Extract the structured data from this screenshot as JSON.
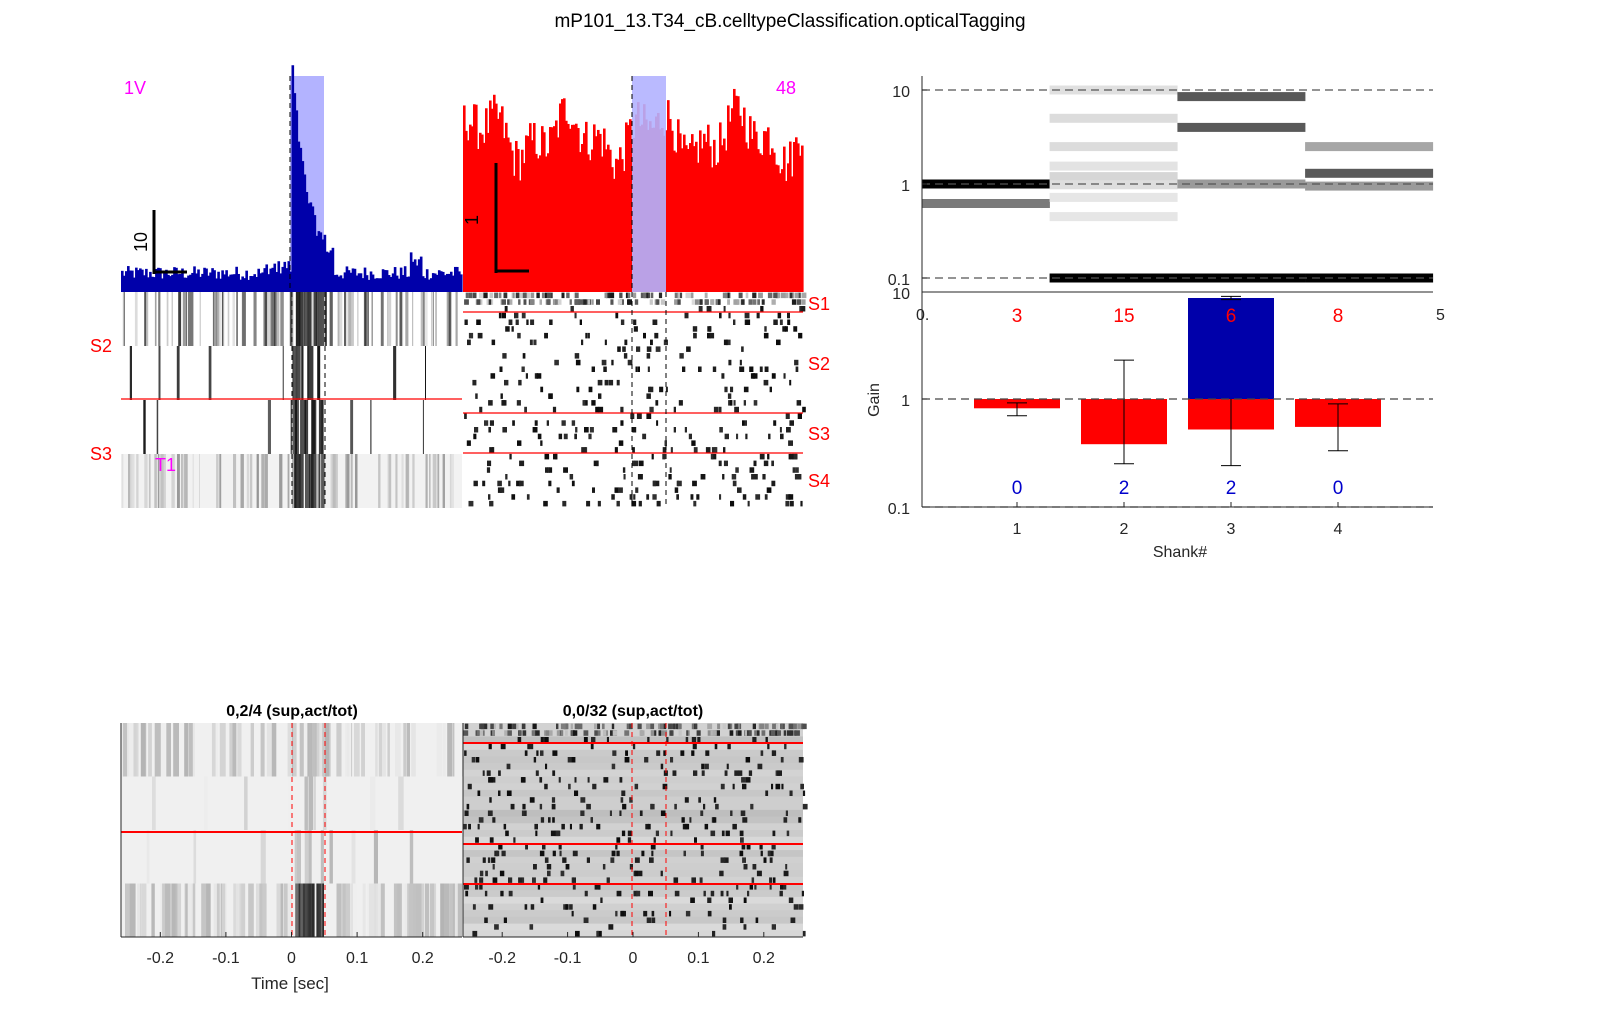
{
  "figure": {
    "title": "mP101_13.T34_cB.celltypeClassification.opticalTagging"
  },
  "chart_data": [
    {
      "id": "left_psth",
      "type": "bar",
      "color": "#0000aa",
      "labels": {
        "corner": "1V",
        "scale": "10"
      },
      "x_range": [
        -0.26,
        0.26
      ],
      "light_window": [
        0,
        0.05
      ],
      "light_color": "#b3b3ff",
      "shape": "baseline ~2, sharp peak ~25 at t=0.005 decaying to ~3 by t=0.06",
      "raster_labels": [
        "S2",
        "S3",
        "T1"
      ],
      "raster_rows": 4,
      "separators_after_row": [
        2
      ]
    },
    {
      "id": "right_psth",
      "type": "bar",
      "color": "#ff0000",
      "labels": {
        "corner": "48",
        "scale": "1"
      },
      "x_range": [
        -0.26,
        0.26
      ],
      "light_window": [
        0,
        0.05
      ],
      "light_color": "#b3b3ff",
      "raster_labels": [
        "S1",
        "S2",
        "S3",
        "S4"
      ],
      "raster_rows": 32,
      "separators_after_row": [
        2,
        14,
        20
      ]
    },
    {
      "id": "gain_levels",
      "type": "bar",
      "ylog": true,
      "ylim": [
        0.1,
        10
      ],
      "yticks": [
        "0.1",
        "1",
        "10"
      ],
      "xlim": [
        0.5,
        4.5
      ],
      "dashed_lines_at": [
        0.1,
        1,
        10
      ],
      "groups": [
        {
          "shank": 1,
          "levels": [
            {
              "y": 1.0,
              "shade": "#000000"
            },
            {
              "y": 0.62,
              "shade": "#7a7a7a"
            }
          ]
        },
        {
          "shank": 2,
          "levels": [
            {
              "y": 10.0,
              "shade": "#e0e0e0"
            },
            {
              "y": 5.0,
              "shade": "#dcdcdc"
            },
            {
              "y": 2.5,
              "shade": "#dcdcdc"
            },
            {
              "y": 1.55,
              "shade": "#e3e3e3"
            },
            {
              "y": 1.2,
              "shade": "#d6d6d6"
            },
            {
              "y": 0.98,
              "shade": "#dedede"
            },
            {
              "y": 0.72,
              "shade": "#e6e6e6"
            },
            {
              "y": 0.45,
              "shade": "#e6e6e6"
            },
            {
              "y": 0.1,
              "shade": "#000000"
            }
          ]
        },
        {
          "shank": 3,
          "levels": [
            {
              "y": 8.5,
              "shade": "#595959"
            },
            {
              "y": 4.0,
              "shade": "#595959"
            },
            {
              "y": 1.0,
              "shade": "#9a9a9a"
            },
            {
              "y": 0.1,
              "shade": "#000000"
            }
          ]
        },
        {
          "shank": 4,
          "levels": [
            {
              "y": 2.5,
              "shade": "#a6a6a6"
            },
            {
              "y": 1.3,
              "shade": "#595959"
            },
            {
              "y": 0.95,
              "shade": "#9a9a9a"
            },
            {
              "y": 0.1,
              "shade": "#000000"
            }
          ]
        }
      ],
      "x_labels": {
        "left": "0.",
        "right": "5"
      }
    },
    {
      "id": "gain_bars",
      "type": "bar",
      "ylog": true,
      "ylim": [
        0.1,
        10
      ],
      "yticks": [
        "0.1",
        "1",
        "10"
      ],
      "ylabel": "Gain",
      "xlabel": "Shank#",
      "categories": [
        "1",
        "2",
        "3",
        "4"
      ],
      "series": [
        {
          "color": "#ff0000",
          "values": [
            0.82,
            0.38,
            0.52,
            0.55
          ],
          "err_low": [
            0.7,
            0.25,
            0.24,
            0.33
          ],
          "err_high": [
            0.92,
            2.3,
            1.05,
            0.9
          ]
        },
        {
          "color": "#0000aa",
          "values": [
            null,
            null,
            8.7,
            null
          ],
          "err_low": [
            null,
            null,
            8.4,
            null
          ],
          "err_high": [
            null,
            null,
            9.0,
            null
          ]
        }
      ],
      "top_counts": [
        "3",
        "15",
        "6",
        "8"
      ],
      "bottom_counts": [
        "0",
        "2",
        "2",
        "0"
      ],
      "top_count_color": "#ff0000",
      "bottom_count_color": "#0000cc"
    },
    {
      "id": "left_heatmap",
      "type": "heatmap",
      "title": "0,2/4 (sup,act/tot)",
      "xlabel": "Time [sec]",
      "xticks": [
        "-0.2",
        "-0.1",
        "0",
        "0.1",
        "0.2"
      ],
      "rows": 4,
      "separators_after_row": [
        2
      ]
    },
    {
      "id": "right_heatmap",
      "type": "heatmap",
      "title": "0,0/32 (sup,act/tot)",
      "xticks": [
        "-0.2",
        "-0.1",
        "0",
        "0.1",
        "0.2"
      ],
      "rows": 32,
      "separators_after_row": [
        2,
        14,
        20
      ]
    }
  ]
}
